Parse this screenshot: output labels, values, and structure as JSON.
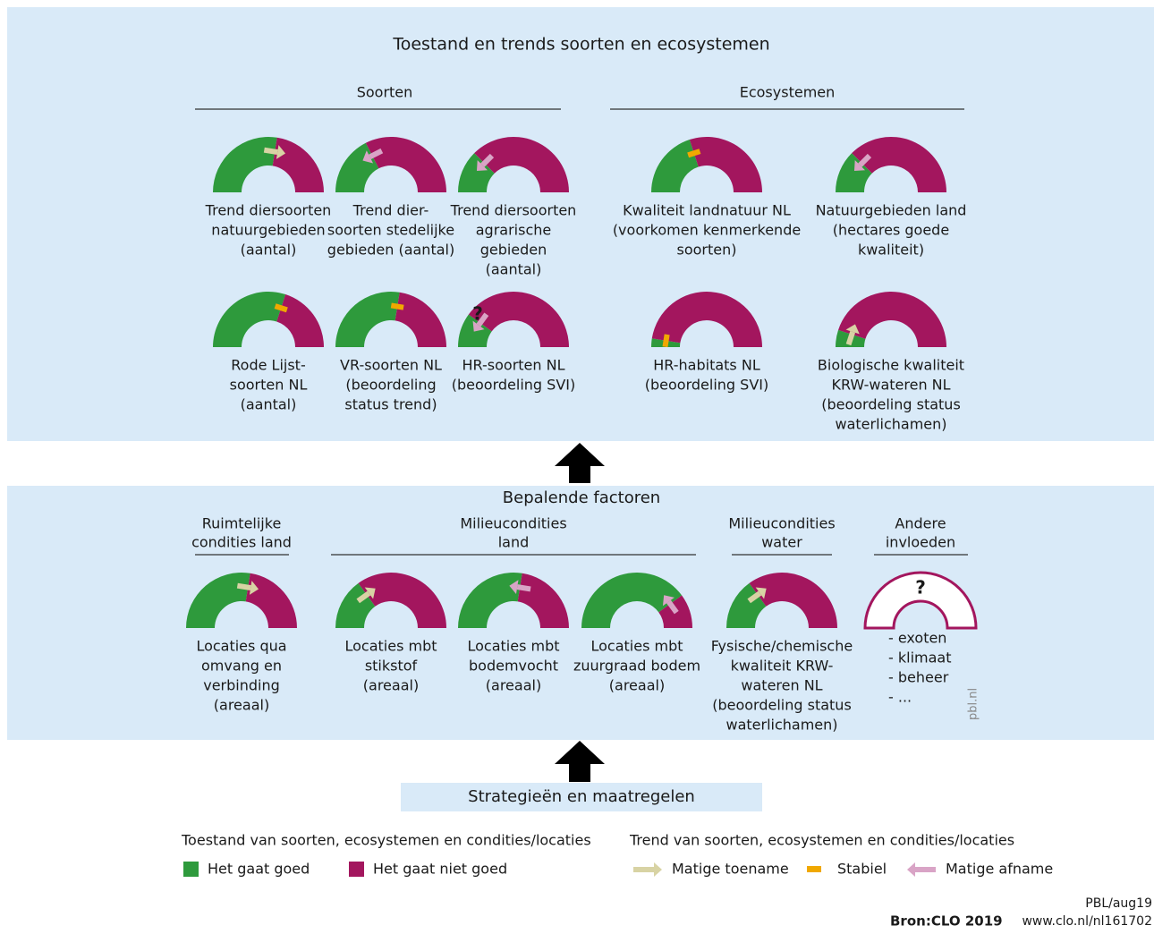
{
  "top": {
    "title": "Toestand en trends soorten en ecosystemen",
    "groups": [
      {
        "title": [
          "Soorten"
        ],
        "gauges": [
          {
            "label": [
              "Trend diersoorten",
              "natuurgebieden",
              "(aantal)"
            ],
            "good": 55,
            "trend": "Matige toename"
          },
          {
            "label": [
              "Trend dier-",
              "soorten stedelijke",
              "gebieden (aantal)"
            ],
            "good": 35,
            "trend": "Matige afname"
          },
          {
            "label": [
              "Trend diersoorten",
              "agrarische",
              "gebieden",
              "(aantal)"
            ],
            "good": 25,
            "trend": "Matige afname"
          },
          {
            "label": [
              "Rode Lijst-",
              "soorten NL",
              "(aantal)"
            ],
            "good": 60,
            "trend": "Stabiel"
          },
          {
            "label": [
              "VR-soorten NL",
              "(beoordeling",
              "status trend)"
            ],
            "good": 55,
            "trend": "Stabiel"
          },
          {
            "label": [
              "HR-soorten NL",
              "(beoordeling SVI)"
            ],
            "good": 20,
            "trend": "Matige afname",
            "note": "?"
          }
        ]
      },
      {
        "title": [
          "Ecosystemen"
        ],
        "gauges": [
          {
            "label": [
              "Kwaliteit landnatuur NL",
              "(voorkomen kenmerkende",
              "soorten)"
            ],
            "good": 40,
            "trend": "Stabiel"
          },
          {
            "label": [
              "Natuurgebieden land",
              "(hectares goede",
              "kwaliteit)"
            ],
            "good": 25,
            "trend": "Matige afname"
          },
          {
            "label": [
              "HR-habitats NL",
              "(beoordeling SVI)"
            ],
            "good": 5,
            "trend": "Stabiel"
          },
          {
            "label": [
              "Biologische kwaliteit",
              "KRW-wateren NL",
              "(beoordeling status",
              "waterlichamen)"
            ],
            "good": 10,
            "trend": "Matige toename"
          }
        ]
      }
    ]
  },
  "factors": {
    "title": "Bepalende factoren",
    "groups": [
      {
        "title": [
          "Ruimtelijke",
          "condities land"
        ],
        "gauges": [
          {
            "label": [
              "Locaties qua",
              "omvang en",
              "verbinding",
              "(areaal)"
            ],
            "good": 55,
            "trend": "Matige toename"
          }
        ]
      },
      {
        "title": [
          "Milieucondities",
          "land"
        ],
        "gauges": [
          {
            "label": [
              "Locaties mbt",
              "stikstof",
              "(areaal)"
            ],
            "good": 30,
            "trend": "Matige toename"
          },
          {
            "label": [
              "Locaties mbt",
              "bodemvocht",
              "(areaal)"
            ],
            "good": 55,
            "trend": "Matige afname"
          },
          {
            "label": [
              "Locaties mbt",
              "zuurgraad bodem",
              "(areaal)"
            ],
            "good": 80,
            "trend": "Matige afname"
          }
        ]
      },
      {
        "title": [
          "Milieucondities",
          "water"
        ],
        "gauges": [
          {
            "label": [
              "Fysische/chemische",
              "kwaliteit KRW-",
              "wateren NL",
              "(beoordeling status",
              "waterlichamen)"
            ],
            "good": 30,
            "trend": "Matige toename"
          }
        ]
      },
      {
        "title": [
          "Andere",
          "invloeden"
        ],
        "gauges": [
          {
            "label": [
              "- exoten",
              "- klimaat",
              "- beheer",
              "- ..."
            ],
            "note": "?"
          }
        ]
      }
    ]
  },
  "strategy": "Strategieën en maatregelen",
  "legend": {
    "state_title": "Toestand van soorten, ecosystemen en condities/locaties",
    "state": [
      {
        "label": "Het gaat goed",
        "color": "#2e9a3c"
      },
      {
        "label": "Het gaat niet goed",
        "color": "#a3165e"
      }
    ],
    "trend_title": "Trend van soorten, ecosystemen en condities/locaties",
    "trend": [
      {
        "label": "Matige toename",
        "color": "#d8d3a4"
      },
      {
        "label": "Stabiel",
        "color": "#f0a800"
      },
      {
        "label": "Matige afname",
        "color": "#d9a4c6"
      }
    ]
  },
  "source": {
    "code": "PBL/aug19",
    "bron": "Bron:CLO 2019",
    "url": "www.clo.nl/nl161702",
    "watermark": "pbl.nl"
  }
}
